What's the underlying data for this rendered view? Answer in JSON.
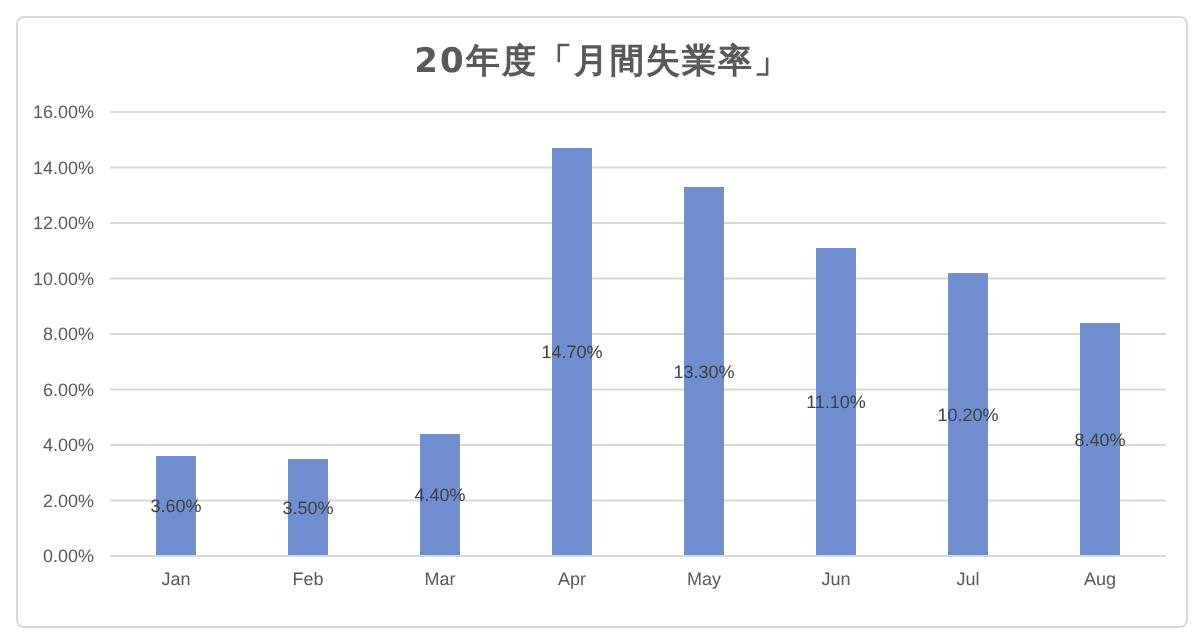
{
  "chart_data": {
    "type": "bar",
    "title": "20年度「月間失業率」",
    "categories": [
      "Jan",
      "Feb",
      "Mar",
      "Apr",
      "May",
      "Jun",
      "Jul",
      "Aug"
    ],
    "values": [
      3.6,
      3.5,
      4.4,
      14.7,
      13.3,
      11.1,
      10.2,
      8.4
    ],
    "value_labels": [
      "3.60%",
      "3.50%",
      "4.40%",
      "14.70%",
      "13.30%",
      "11.10%",
      "10.20%",
      "8.40%"
    ],
    "color": "#6f8fd0",
    "ylim": [
      0,
      16
    ],
    "yticks": [
      {
        "value": 0,
        "label": "0.00%"
      },
      {
        "value": 2,
        "label": "2.00%"
      },
      {
        "value": 4,
        "label": "4.00%"
      },
      {
        "value": 6,
        "label": "6.00%"
      },
      {
        "value": 8,
        "label": "8.00%"
      },
      {
        "value": 10,
        "label": "10.00%"
      },
      {
        "value": 12,
        "label": "12.00%"
      },
      {
        "value": 14,
        "label": "14.00%"
      },
      {
        "value": 16,
        "label": "16.00%"
      }
    ],
    "grid": "y"
  }
}
